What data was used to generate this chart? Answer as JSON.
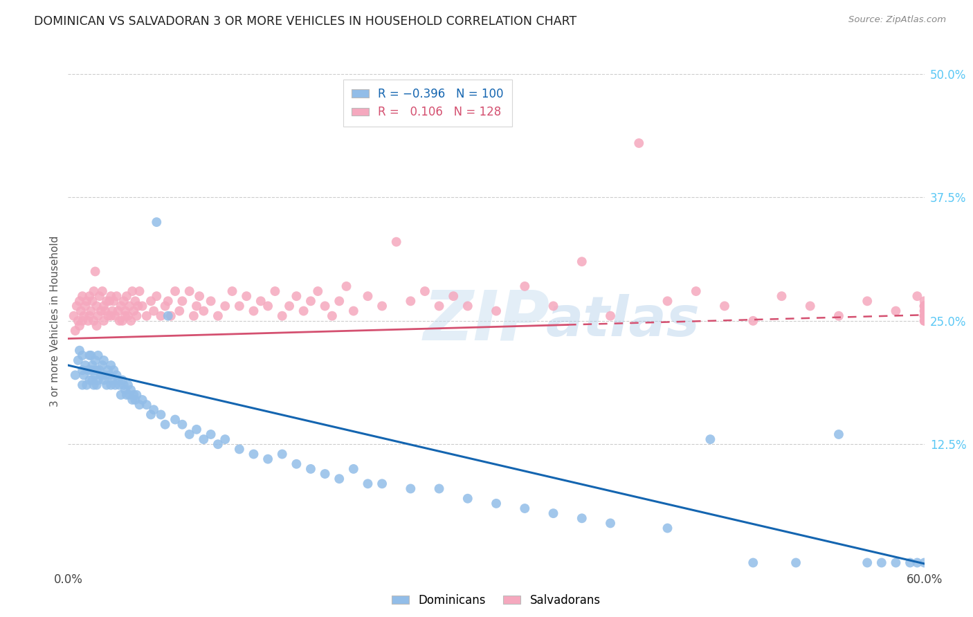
{
  "title": "DOMINICAN VS SALVADORAN 3 OR MORE VEHICLES IN HOUSEHOLD CORRELATION CHART",
  "source": "Source: ZipAtlas.com",
  "ylabel": "3 or more Vehicles in Household",
  "xlim": [
    0.0,
    0.6
  ],
  "ylim": [
    0.0,
    0.5
  ],
  "xtick_positions": [
    0.0,
    0.1,
    0.2,
    0.3,
    0.4,
    0.5,
    0.6
  ],
  "xticklabels": [
    "0.0%",
    "",
    "",
    "",
    "",
    "",
    "60.0%"
  ],
  "ytick_positions": [
    0.125,
    0.25,
    0.375,
    0.5
  ],
  "ytick_labels": [
    "12.5%",
    "25.0%",
    "37.5%",
    "50.0%"
  ],
  "dominican_R": "-0.396",
  "dominican_N": "100",
  "salvadoran_R": "0.106",
  "salvadoran_N": "128",
  "dominican_color": "#92bde8",
  "salvadoran_color": "#f5a8be",
  "dominican_line_color": "#1465b0",
  "salvadoran_line_color": "#d45070",
  "background_color": "#ffffff",
  "grid_color": "#cccccc",
  "legend_label_blue": "Dominicans",
  "legend_label_pink": "Salvadorans",
  "dominican_line_intercept": 0.205,
  "dominican_line_slope": -0.335,
  "salvadoran_line_intercept": 0.232,
  "salvadoran_line_slope": 0.04,
  "dominican_x": [
    0.005,
    0.007,
    0.008,
    0.01,
    0.01,
    0.01,
    0.011,
    0.012,
    0.013,
    0.014,
    0.015,
    0.015,
    0.016,
    0.016,
    0.017,
    0.017,
    0.018,
    0.018,
    0.019,
    0.019,
    0.02,
    0.02,
    0.021,
    0.021,
    0.022,
    0.023,
    0.024,
    0.025,
    0.025,
    0.026,
    0.027,
    0.028,
    0.029,
    0.03,
    0.03,
    0.031,
    0.032,
    0.033,
    0.034,
    0.035,
    0.036,
    0.037,
    0.038,
    0.039,
    0.04,
    0.041,
    0.042,
    0.043,
    0.044,
    0.045,
    0.046,
    0.047,
    0.048,
    0.05,
    0.052,
    0.055,
    0.058,
    0.06,
    0.062,
    0.065,
    0.068,
    0.07,
    0.075,
    0.08,
    0.085,
    0.09,
    0.095,
    0.1,
    0.105,
    0.11,
    0.12,
    0.13,
    0.14,
    0.15,
    0.16,
    0.17,
    0.18,
    0.19,
    0.2,
    0.21,
    0.22,
    0.24,
    0.26,
    0.28,
    0.3,
    0.32,
    0.34,
    0.36,
    0.38,
    0.42,
    0.45,
    0.48,
    0.51,
    0.54,
    0.56,
    0.57,
    0.58,
    0.59,
    0.595,
    0.6
  ],
  "dominican_y": [
    0.195,
    0.21,
    0.22,
    0.185,
    0.2,
    0.215,
    0.195,
    0.205,
    0.185,
    0.2,
    0.215,
    0.19,
    0.2,
    0.215,
    0.19,
    0.205,
    0.2,
    0.185,
    0.195,
    0.21,
    0.185,
    0.2,
    0.215,
    0.19,
    0.2,
    0.195,
    0.205,
    0.19,
    0.21,
    0.195,
    0.185,
    0.2,
    0.195,
    0.185,
    0.205,
    0.19,
    0.2,
    0.185,
    0.195,
    0.19,
    0.185,
    0.175,
    0.19,
    0.185,
    0.18,
    0.175,
    0.185,
    0.175,
    0.18,
    0.17,
    0.175,
    0.17,
    0.175,
    0.165,
    0.17,
    0.165,
    0.155,
    0.16,
    0.35,
    0.155,
    0.145,
    0.255,
    0.15,
    0.145,
    0.135,
    0.14,
    0.13,
    0.135,
    0.125,
    0.13,
    0.12,
    0.115,
    0.11,
    0.115,
    0.105,
    0.1,
    0.095,
    0.09,
    0.1,
    0.085,
    0.085,
    0.08,
    0.08,
    0.07,
    0.065,
    0.06,
    0.055,
    0.05,
    0.045,
    0.04,
    0.13,
    0.005,
    0.005,
    0.135,
    0.005,
    0.005,
    0.005,
    0.005,
    0.005,
    0.005
  ],
  "salvadoran_x": [
    0.004,
    0.005,
    0.006,
    0.007,
    0.008,
    0.008,
    0.009,
    0.01,
    0.01,
    0.011,
    0.012,
    0.013,
    0.014,
    0.015,
    0.015,
    0.016,
    0.017,
    0.018,
    0.018,
    0.019,
    0.02,
    0.02,
    0.021,
    0.022,
    0.023,
    0.024,
    0.025,
    0.025,
    0.026,
    0.027,
    0.028,
    0.029,
    0.03,
    0.03,
    0.031,
    0.032,
    0.033,
    0.034,
    0.035,
    0.036,
    0.037,
    0.038,
    0.039,
    0.04,
    0.04,
    0.041,
    0.042,
    0.043,
    0.044,
    0.045,
    0.046,
    0.047,
    0.048,
    0.049,
    0.05,
    0.052,
    0.055,
    0.058,
    0.06,
    0.062,
    0.065,
    0.068,
    0.07,
    0.072,
    0.075,
    0.078,
    0.08,
    0.085,
    0.088,
    0.09,
    0.092,
    0.095,
    0.1,
    0.105,
    0.11,
    0.115,
    0.12,
    0.125,
    0.13,
    0.135,
    0.14,
    0.145,
    0.15,
    0.155,
    0.16,
    0.165,
    0.17,
    0.175,
    0.18,
    0.185,
    0.19,
    0.195,
    0.2,
    0.21,
    0.22,
    0.23,
    0.24,
    0.25,
    0.26,
    0.27,
    0.28,
    0.3,
    0.32,
    0.34,
    0.36,
    0.38,
    0.4,
    0.42,
    0.44,
    0.46,
    0.48,
    0.5,
    0.52,
    0.54,
    0.56,
    0.58,
    0.595,
    0.6,
    0.6,
    0.6,
    0.6,
    0.6,
    0.6,
    0.6,
    0.6,
    0.6,
    0.6,
    0.6
  ],
  "salvadoran_y": [
    0.255,
    0.24,
    0.265,
    0.25,
    0.27,
    0.245,
    0.26,
    0.25,
    0.275,
    0.255,
    0.265,
    0.27,
    0.25,
    0.275,
    0.255,
    0.26,
    0.27,
    0.25,
    0.28,
    0.3,
    0.265,
    0.245,
    0.255,
    0.275,
    0.26,
    0.28,
    0.265,
    0.25,
    0.26,
    0.27,
    0.255,
    0.27,
    0.255,
    0.275,
    0.26,
    0.27,
    0.255,
    0.275,
    0.26,
    0.25,
    0.265,
    0.25,
    0.27,
    0.255,
    0.26,
    0.275,
    0.255,
    0.265,
    0.25,
    0.28,
    0.26,
    0.27,
    0.255,
    0.265,
    0.28,
    0.265,
    0.255,
    0.27,
    0.26,
    0.275,
    0.255,
    0.265,
    0.27,
    0.255,
    0.28,
    0.26,
    0.27,
    0.28,
    0.255,
    0.265,
    0.275,
    0.26,
    0.27,
    0.255,
    0.265,
    0.28,
    0.265,
    0.275,
    0.26,
    0.27,
    0.265,
    0.28,
    0.255,
    0.265,
    0.275,
    0.26,
    0.27,
    0.28,
    0.265,
    0.255,
    0.27,
    0.285,
    0.26,
    0.275,
    0.265,
    0.33,
    0.27,
    0.28,
    0.265,
    0.275,
    0.265,
    0.26,
    0.285,
    0.265,
    0.31,
    0.255,
    0.43,
    0.27,
    0.28,
    0.265,
    0.25,
    0.275,
    0.265,
    0.255,
    0.27,
    0.26,
    0.275,
    0.265,
    0.255,
    0.265,
    0.26,
    0.255,
    0.25,
    0.27,
    0.265,
    0.255,
    0.26,
    0.25
  ]
}
